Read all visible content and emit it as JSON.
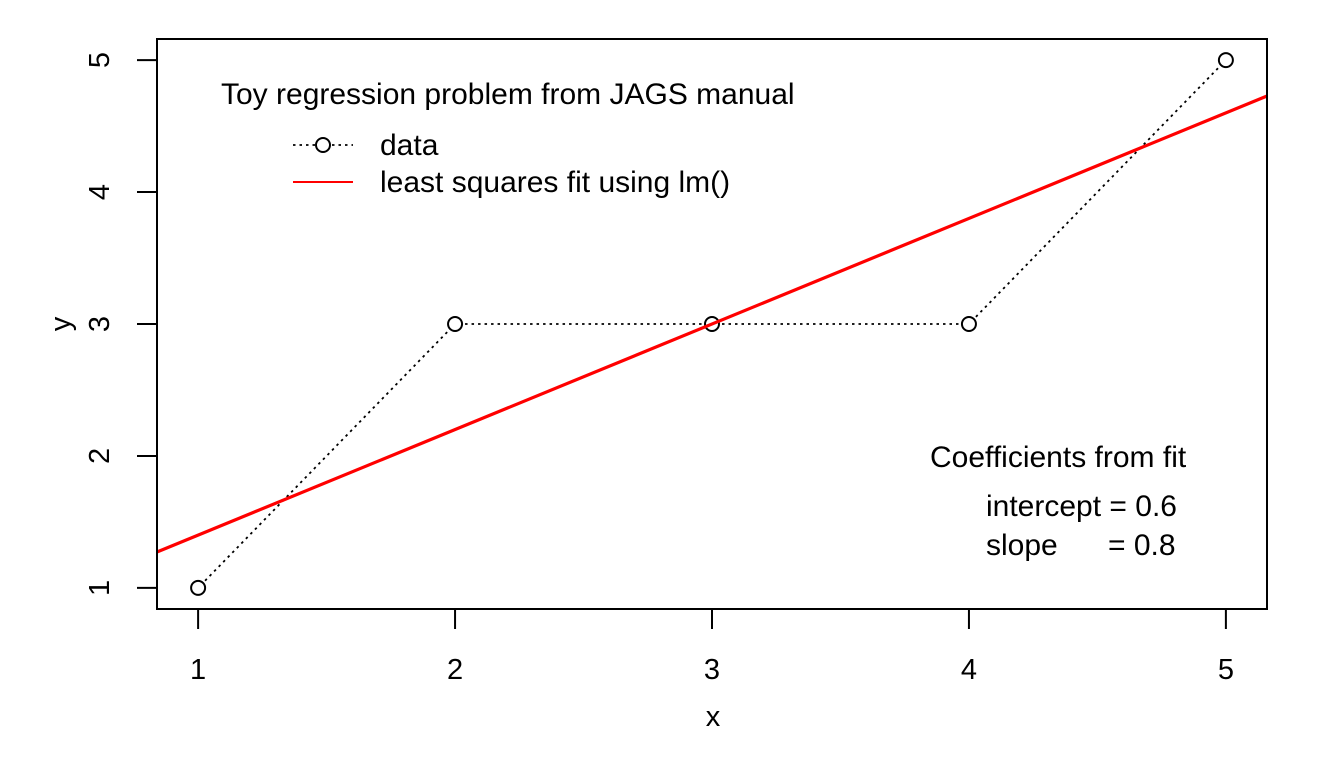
{
  "chart_data": {
    "type": "line",
    "x": [
      1,
      2,
      3,
      4,
      5
    ],
    "series": [
      {
        "name": "data",
        "values": [
          1,
          3,
          3,
          3,
          5
        ],
        "style": "dotted-with-circles",
        "color": "#000000"
      },
      {
        "name": "least squares fit using lm()",
        "intercept": 0.6,
        "slope": 0.8,
        "style": "solid",
        "color": "#ff0000"
      }
    ],
    "xlabel": "x",
    "ylabel": "y",
    "xticks": [
      "1",
      "2",
      "3",
      "4",
      "5"
    ],
    "yticks": [
      "1",
      "2",
      "3",
      "4",
      "5"
    ],
    "xlim": [
      0.84,
      5.16
    ],
    "ylim": [
      0.84,
      5.16
    ],
    "grid": false,
    "legend": {
      "title": "Toy regression problem from JAGS manual",
      "placement": "top-left"
    },
    "annotation": {
      "title": "Coefficients from fit",
      "line1": "intercept = 0.6",
      "line2_label": "slope",
      "line2_value": "= 0.8",
      "placement": "bottom-right"
    }
  }
}
